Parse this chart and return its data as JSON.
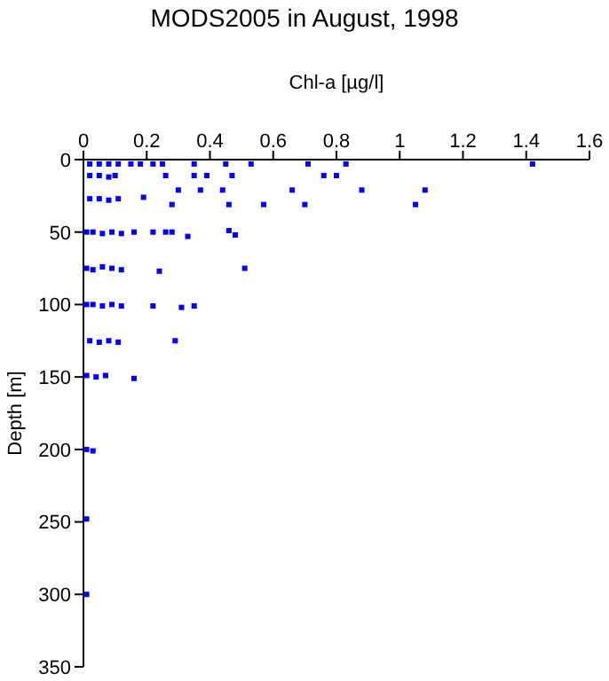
{
  "chart_data": {
    "type": "scatter",
    "title": "MODS2005 in August, 1998",
    "xlabel": "Chl-a [µg/l]",
    "ylabel": "Depth [m]",
    "xlim": [
      0,
      1.6
    ],
    "xticks": [
      0,
      0.2,
      0.4,
      0.6,
      0.8,
      1,
      1.2,
      1.4,
      1.6
    ],
    "ylim": [
      350,
      0
    ],
    "yticks": [
      0,
      50,
      100,
      150,
      200,
      250,
      300,
      350
    ],
    "grid": false,
    "legend": false,
    "marker": "square",
    "series": [
      {
        "color": "#0000ff",
        "x": [
          0.02,
          0.05,
          0.08,
          0.11,
          0.15,
          0.18,
          0.22,
          0.25,
          0.35,
          0.45,
          0.53,
          0.71,
          0.83,
          1.42,
          0.02,
          0.05,
          0.08,
          0.1,
          0.26,
          0.35,
          0.39,
          0.47,
          0.76,
          0.8,
          0.3,
          0.37,
          0.44,
          0.66,
          0.88,
          1.08,
          0.02,
          0.05,
          0.08,
          0.11,
          0.19,
          0.28,
          0.46,
          0.57,
          0.7,
          1.05,
          0.01,
          0.03,
          0.06,
          0.09,
          0.12,
          0.16,
          0.22,
          0.26,
          0.28,
          0.33,
          0.46,
          0.48,
          0.01,
          0.03,
          0.06,
          0.09,
          0.12,
          0.24,
          0.51,
          0.01,
          0.03,
          0.06,
          0.09,
          0.12,
          0.22,
          0.31,
          0.35,
          0.02,
          0.05,
          0.08,
          0.11,
          0.29,
          0.01,
          0.04,
          0.07,
          0.16,
          0.01,
          0.03,
          0.01,
          0.01
        ],
        "values": [
          3,
          3,
          3,
          3,
          3,
          3,
          3,
          3,
          3,
          3,
          3,
          3,
          3,
          3,
          11,
          11,
          12,
          11,
          11,
          11,
          11,
          11,
          11,
          11,
          21,
          21,
          21,
          21,
          21,
          21,
          27,
          27,
          28,
          27,
          26,
          31,
          31,
          31,
          31,
          31,
          50,
          50,
          51,
          50,
          51,
          50,
          50,
          50,
          50,
          53,
          49,
          52,
          75,
          76,
          74,
          75,
          76,
          77,
          75,
          100,
          100,
          101,
          100,
          101,
          101,
          102,
          101,
          125,
          126,
          125,
          126,
          125,
          149,
          150,
          149,
          151,
          200,
          201,
          248,
          300
        ]
      }
    ]
  }
}
